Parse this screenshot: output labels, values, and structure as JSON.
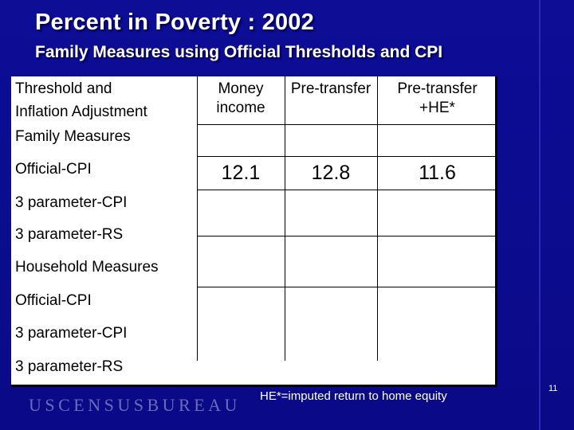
{
  "slide": {
    "title": "Percent in Poverty : 2002",
    "subtitle": "Family Measures using Official Thresholds and CPI",
    "footnote": "HE*=imputed return to home equity",
    "slide_number": "11",
    "logo_text": "USCENSUSBUREAU"
  },
  "table": {
    "row_label_header_line1": "Threshold and",
    "row_label_header_line2": "Inflation Adjustment",
    "columns": [
      {
        "line1": "Money",
        "line2": "income"
      },
      {
        "line1": "Pre-transfer",
        "line2": ""
      },
      {
        "line1": "Pre-transfer",
        "line2": "+HE*"
      }
    ],
    "rows": [
      {
        "label": "Family Measures",
        "values": [
          "",
          "",
          ""
        ]
      },
      {
        "label": "Official-CPI",
        "values": [
          "12.1",
          "12.8",
          "11.6"
        ]
      },
      {
        "label": "3 parameter-CPI",
        "values": [
          "",
          "",
          ""
        ]
      },
      {
        "label": "3 parameter-RS",
        "values": [
          "",
          "",
          ""
        ]
      },
      {
        "label": "Household Measures",
        "values": [
          "",
          "",
          ""
        ]
      },
      {
        "label": "Official-CPI",
        "values": [
          "",
          "",
          ""
        ]
      },
      {
        "label": "3 parameter-CPI",
        "values": [
          "",
          "",
          ""
        ]
      },
      {
        "label": "3 parameter-RS",
        "values": [
          "",
          "",
          ""
        ]
      }
    ]
  },
  "colors": {
    "background": "#0b0b8e",
    "text_on_background": "#ffffff",
    "table_background": "#ffffff",
    "logo": "#6b6bb8"
  }
}
